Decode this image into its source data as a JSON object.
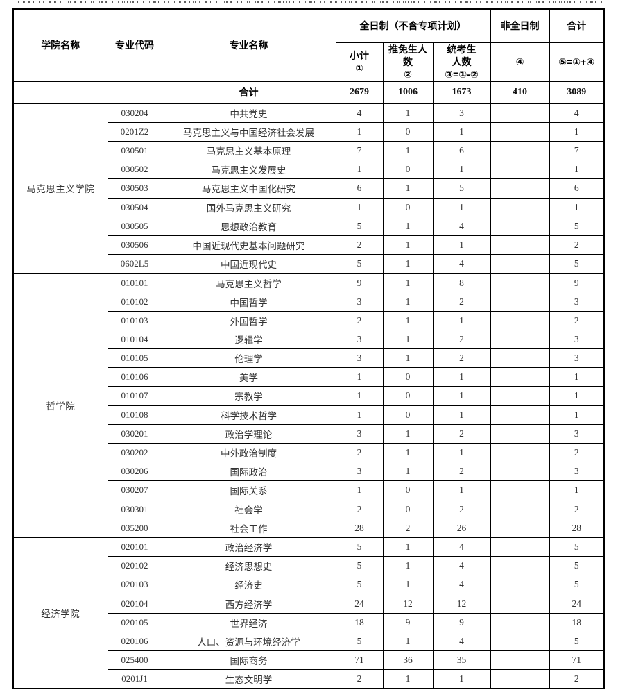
{
  "table": {
    "header": {
      "college": "学院名称",
      "major_code": "专业代码",
      "major_name": "专业名称",
      "fulltime_group": "全日制（不含专项计划）",
      "parttime": "非全日制",
      "total": "合计",
      "sub_subtotal": "小计\n①",
      "sub_recommended": "推免生人\n数\n②",
      "sub_unified": "统考生\n人数\n③=①-②",
      "sub_parttime": "④",
      "sub_total": "⑤=①+④"
    },
    "total_row": {
      "label": "合计",
      "values": [
        "2679",
        "1006",
        "1673",
        "410",
        "3089"
      ]
    },
    "sections": [
      {
        "college": "马克思主义学院",
        "rows": [
          {
            "code": "030204",
            "name": "中共党史",
            "values": [
              "4",
              "1",
              "3",
              "",
              "4"
            ]
          },
          {
            "code": "0201Z2",
            "name": "马克思主义与中国经济社会发展",
            "values": [
              "1",
              "0",
              "1",
              "",
              "1"
            ]
          },
          {
            "code": "030501",
            "name": "马克思主义基本原理",
            "values": [
              "7",
              "1",
              "6",
              "",
              "7"
            ]
          },
          {
            "code": "030502",
            "name": "马克思主义发展史",
            "values": [
              "1",
              "0",
              "1",
              "",
              "1"
            ]
          },
          {
            "code": "030503",
            "name": "马克思主义中国化研究",
            "values": [
              "6",
              "1",
              "5",
              "",
              "6"
            ]
          },
          {
            "code": "030504",
            "name": "国外马克思主义研究",
            "values": [
              "1",
              "0",
              "1",
              "",
              "1"
            ]
          },
          {
            "code": "030505",
            "name": "思想政治教育",
            "values": [
              "5",
              "1",
              "4",
              "",
              "5"
            ]
          },
          {
            "code": "030506",
            "name": "中国近现代史基本问题研究",
            "values": [
              "2",
              "1",
              "1",
              "",
              "2"
            ]
          },
          {
            "code": "0602L5",
            "name": "中国近现代史",
            "values": [
              "5",
              "1",
              "4",
              "",
              "5"
            ]
          }
        ]
      },
      {
        "college": "哲学院",
        "rows": [
          {
            "code": "010101",
            "name": "马克思主义哲学",
            "values": [
              "9",
              "1",
              "8",
              "",
              "9"
            ]
          },
          {
            "code": "010102",
            "name": "中国哲学",
            "values": [
              "3",
              "1",
              "2",
              "",
              "3"
            ]
          },
          {
            "code": "010103",
            "name": "外国哲学",
            "values": [
              "2",
              "1",
              "1",
              "",
              "2"
            ]
          },
          {
            "code": "010104",
            "name": "逻辑学",
            "values": [
              "3",
              "1",
              "2",
              "",
              "3"
            ]
          },
          {
            "code": "010105",
            "name": "伦理学",
            "values": [
              "3",
              "1",
              "2",
              "",
              "3"
            ]
          },
          {
            "code": "010106",
            "name": "美学",
            "values": [
              "1",
              "0",
              "1",
              "",
              "1"
            ]
          },
          {
            "code": "010107",
            "name": "宗教学",
            "values": [
              "1",
              "0",
              "1",
              "",
              "1"
            ]
          },
          {
            "code": "010108",
            "name": "科学技术哲学",
            "values": [
              "1",
              "0",
              "1",
              "",
              "1"
            ]
          },
          {
            "code": "030201",
            "name": "政治学理论",
            "values": [
              "3",
              "1",
              "2",
              "",
              "3"
            ]
          },
          {
            "code": "030202",
            "name": "中外政治制度",
            "values": [
              "2",
              "1",
              "1",
              "",
              "2"
            ]
          },
          {
            "code": "030206",
            "name": "国际政治",
            "values": [
              "3",
              "1",
              "2",
              "",
              "3"
            ]
          },
          {
            "code": "030207",
            "name": "国际关系",
            "values": [
              "1",
              "0",
              "1",
              "",
              "1"
            ]
          },
          {
            "code": "030301",
            "name": "社会学",
            "values": [
              "2",
              "0",
              "2",
              "",
              "2"
            ]
          },
          {
            "code": "035200",
            "name": "社会工作",
            "values": [
              "28",
              "2",
              "26",
              "",
              "28"
            ]
          }
        ]
      },
      {
        "college": "经济学院",
        "rows": [
          {
            "code": "020101",
            "name": "政治经济学",
            "values": [
              "5",
              "1",
              "4",
              "",
              "5"
            ]
          },
          {
            "code": "020102",
            "name": "经济思想史",
            "values": [
              "5",
              "1",
              "4",
              "",
              "5"
            ]
          },
          {
            "code": "020103",
            "name": "经济史",
            "values": [
              "5",
              "1",
              "4",
              "",
              "5"
            ]
          },
          {
            "code": "020104",
            "name": "西方经济学",
            "values": [
              "24",
              "12",
              "12",
              "",
              "24"
            ]
          },
          {
            "code": "020105",
            "name": "世界经济",
            "values": [
              "18",
              "9",
              "9",
              "",
              "18"
            ]
          },
          {
            "code": "020106",
            "name": "人口、资源与环境经济学",
            "values": [
              "5",
              "1",
              "4",
              "",
              "5"
            ]
          },
          {
            "code": "025400",
            "name": "国际商务",
            "values": [
              "71",
              "36",
              "35",
              "",
              "71"
            ]
          },
          {
            "code": "0201J1",
            "name": "生态文明学",
            "values": [
              "2",
              "1",
              "1",
              "",
              "2"
            ]
          }
        ]
      }
    ]
  }
}
